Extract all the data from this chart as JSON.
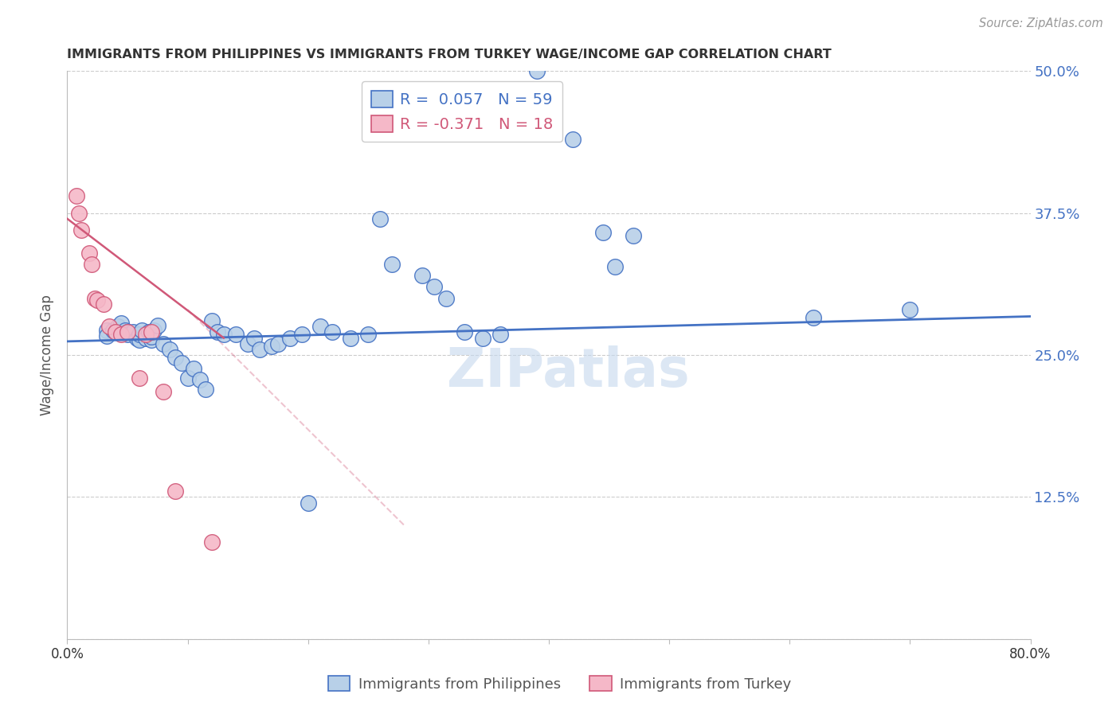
{
  "title": "IMMIGRANTS FROM PHILIPPINES VS IMMIGRANTS FROM TURKEY WAGE/INCOME GAP CORRELATION CHART",
  "source": "Source: ZipAtlas.com",
  "ylabel": "Wage/Income Gap",
  "y_ticks_right": [
    0.0,
    0.125,
    0.25,
    0.375,
    0.5
  ],
  "y_tick_labels_right": [
    "",
    "12.5%",
    "25.0%",
    "37.5%",
    "50.0%"
  ],
  "xlim": [
    0.0,
    0.8
  ],
  "ylim": [
    0.0,
    0.5
  ],
  "blue_r": 0.057,
  "blue_n": 59,
  "pink_r": -0.371,
  "pink_n": 18,
  "blue_color": "#b8d0e8",
  "pink_color": "#f5b8c8",
  "blue_line_color": "#4472c4",
  "pink_line_color": "#d05878",
  "blue_scatter_x": [
    0.033,
    0.033,
    0.038,
    0.04,
    0.042,
    0.045,
    0.048,
    0.05,
    0.05,
    0.055,
    0.058,
    0.06,
    0.06,
    0.062,
    0.065,
    0.068,
    0.07,
    0.07,
    0.072,
    0.075,
    0.08,
    0.085,
    0.09,
    0.095,
    0.1,
    0.105,
    0.11,
    0.115,
    0.12,
    0.125,
    0.13,
    0.14,
    0.15,
    0.155,
    0.16,
    0.17,
    0.175,
    0.185,
    0.195,
    0.2,
    0.21,
    0.22,
    0.235,
    0.25,
    0.26,
    0.27,
    0.295,
    0.305,
    0.315,
    0.33,
    0.345,
    0.36,
    0.39,
    0.42,
    0.445,
    0.455,
    0.47,
    0.62,
    0.7
  ],
  "blue_scatter_y": [
    0.272,
    0.267,
    0.272,
    0.27,
    0.275,
    0.278,
    0.272,
    0.27,
    0.268,
    0.27,
    0.265,
    0.263,
    0.268,
    0.272,
    0.265,
    0.27,
    0.263,
    0.266,
    0.272,
    0.276,
    0.26,
    0.255,
    0.248,
    0.243,
    0.23,
    0.238,
    0.228,
    0.22,
    0.28,
    0.27,
    0.268,
    0.268,
    0.26,
    0.265,
    0.255,
    0.258,
    0.26,
    0.265,
    0.268,
    0.12,
    0.275,
    0.27,
    0.265,
    0.268,
    0.37,
    0.33,
    0.32,
    0.31,
    0.3,
    0.27,
    0.265,
    0.268,
    0.5,
    0.44,
    0.358,
    0.328,
    0.355,
    0.283,
    0.29
  ],
  "pink_scatter_x": [
    0.008,
    0.01,
    0.012,
    0.018,
    0.02,
    0.023,
    0.025,
    0.03,
    0.035,
    0.04,
    0.045,
    0.05,
    0.06,
    0.065,
    0.07,
    0.08,
    0.09,
    0.12
  ],
  "pink_scatter_y": [
    0.39,
    0.375,
    0.36,
    0.34,
    0.33,
    0.3,
    0.298,
    0.295,
    0.275,
    0.27,
    0.268,
    0.27,
    0.23,
    0.268,
    0.27,
    0.218,
    0.13,
    0.085
  ],
  "watermark": "ZIPatlas",
  "legend_label_blue": "Immigrants from Philippines",
  "legend_label_pink": "Immigrants from Turkey",
  "background_color": "#ffffff",
  "grid_color": "#cccccc"
}
